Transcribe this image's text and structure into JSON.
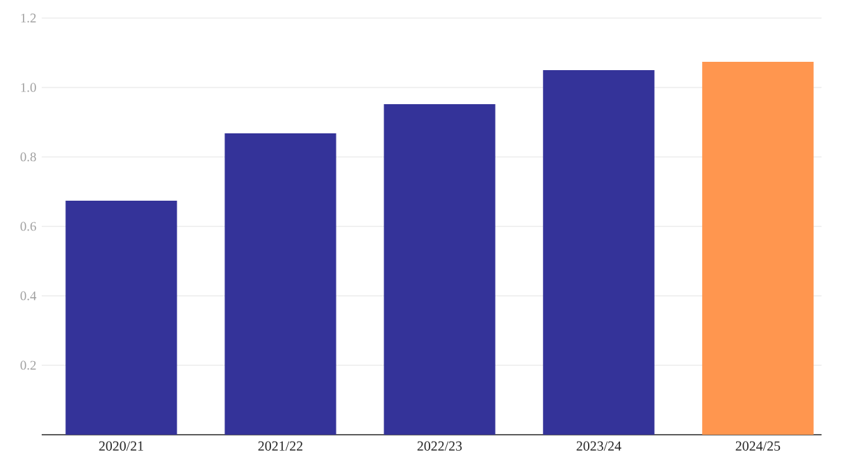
{
  "chart_data": {
    "type": "bar",
    "categories": [
      "2020/21",
      "2021/22",
      "2022/23",
      "2023/24",
      "2024/25"
    ],
    "values": [
      0.674,
      0.868,
      0.952,
      1.05,
      1.074
    ],
    "colors": [
      "#343399",
      "#343399",
      "#343399",
      "#343399",
      "#ff964f"
    ],
    "ylim": [
      0,
      1.2
    ],
    "yticks": [
      0.2,
      0.4,
      0.6,
      0.8,
      {
        "value": 1,
        "label": "1.0"
      },
      1.2
    ],
    "grid": "y"
  }
}
